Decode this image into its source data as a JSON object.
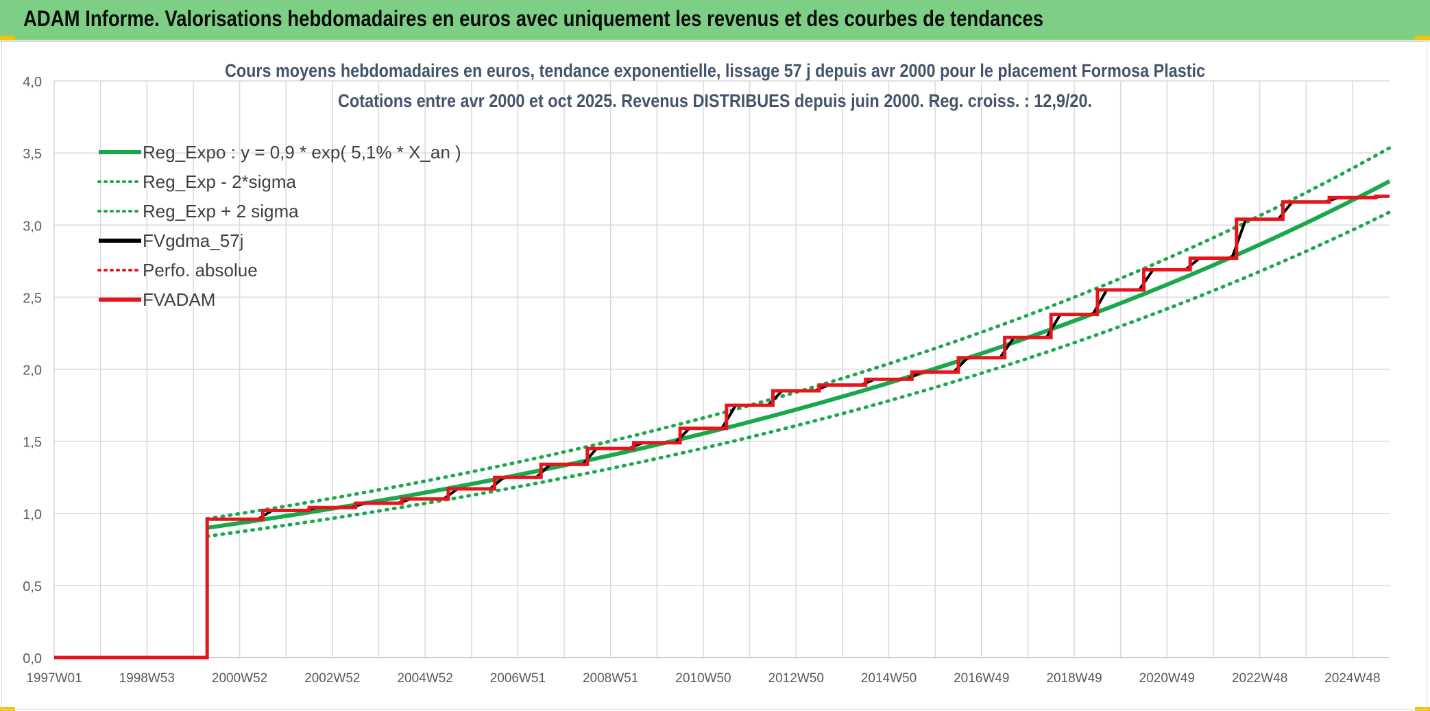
{
  "banner": {
    "title": "ADAM Informe. Valorisations hebdomadaires en euros avec uniquement les revenus et des courbes de tendances"
  },
  "colors": {
    "banner_bg": "#7ccf84",
    "trend_green": "#1aa84c",
    "adam_red": "#e8141c",
    "gdma_black": "#000000",
    "grid": "#d9d9d9",
    "accent_yellow": "#f2c200"
  },
  "chart_data": {
    "type": "line",
    "title": "Cours moyens hebdomadaires en euros, tendance exponentielle, lissage 57 j depuis avr 2000 pour le placement Formosa Plastic",
    "subtitle": "Cotations entre avr 2000 et oct 2025. Revenus DISTRIBUES depuis juin 2000. Reg. croiss. : 12,9/20.",
    "xlabel": "",
    "ylabel": "",
    "x_range": [
      1997.0,
      2025.8
    ],
    "ylim": [
      0,
      4
    ],
    "y_ticks": [
      "0,0",
      "0,5",
      "1,0",
      "1,5",
      "2,0",
      "2,5",
      "3,0",
      "3,5",
      "4,0"
    ],
    "y_tick_values": [
      0,
      0.5,
      1,
      1.5,
      2,
      2.5,
      3,
      3.5,
      4
    ],
    "x_tick_labels": [
      "1997W01",
      "1998W53",
      "2000W52",
      "2002W52",
      "2004W52",
      "2006W51",
      "2008W51",
      "2010W50",
      "2012W50",
      "2014W50",
      "2016W49",
      "2018W49",
      "2020W49",
      "2022W48",
      "2024W48"
    ],
    "x_tick_values": [
      1997.0,
      1999.0,
      2001.0,
      2003.0,
      2005.0,
      2007.0,
      2009.0,
      2011.0,
      2013.0,
      2015.0,
      2017.0,
      2019.0,
      2021.0,
      2023.0,
      2025.0
    ],
    "grid": true,
    "legend_position": "top-left",
    "legend": [
      {
        "label": "Reg_Expo : y = 0,9 * exp( 5,1% *  X_an )",
        "color": "#1aa84c",
        "style": "solid"
      },
      {
        "label": "Reg_Exp - 2*sigma",
        "color": "#1aa84c",
        "style": "dotted"
      },
      {
        "label": "Reg_Exp + 2 sigma",
        "color": "#1aa84c",
        "style": "dotted"
      },
      {
        "label": "FVgdma_57j",
        "color": "#000000",
        "style": "solid"
      },
      {
        "label": "Perfo. absolue",
        "color": "#e8141c",
        "style": "dotted"
      },
      {
        "label": "FVADAM",
        "color": "#e8141c",
        "style": "solid"
      }
    ],
    "regression": {
      "a": 0.9,
      "b": 0.051,
      "x0": 2000.3,
      "x_end": 2025.8
    },
    "bands": {
      "lower_factor": 0.935,
      "upper_factor": 1.07
    },
    "fvadam_steps": [
      {
        "x": 1997.0,
        "y": 0.0
      },
      {
        "x": 2000.3,
        "y": 0.96
      },
      {
        "x": 2001.5,
        "y": 1.02
      },
      {
        "x": 2002.5,
        "y": 1.04
      },
      {
        "x": 2003.5,
        "y": 1.07
      },
      {
        "x": 2004.5,
        "y": 1.1
      },
      {
        "x": 2005.5,
        "y": 1.17
      },
      {
        "x": 2006.5,
        "y": 1.25
      },
      {
        "x": 2007.5,
        "y": 1.34
      },
      {
        "x": 2008.5,
        "y": 1.45
      },
      {
        "x": 2009.5,
        "y": 1.49
      },
      {
        "x": 2010.5,
        "y": 1.59
      },
      {
        "x": 2011.5,
        "y": 1.75
      },
      {
        "x": 2012.5,
        "y": 1.85
      },
      {
        "x": 2013.5,
        "y": 1.89
      },
      {
        "x": 2014.5,
        "y": 1.93
      },
      {
        "x": 2015.5,
        "y": 1.98
      },
      {
        "x": 2016.5,
        "y": 2.08
      },
      {
        "x": 2017.5,
        "y": 2.22
      },
      {
        "x": 2018.5,
        "y": 2.38
      },
      {
        "x": 2019.5,
        "y": 2.55
      },
      {
        "x": 2020.5,
        "y": 2.69
      },
      {
        "x": 2021.5,
        "y": 2.77
      },
      {
        "x": 2022.5,
        "y": 3.04
      },
      {
        "x": 2023.5,
        "y": 3.16
      },
      {
        "x": 2024.5,
        "y": 3.19
      },
      {
        "x": 2025.5,
        "y": 3.2
      }
    ],
    "x_end": 2025.8
  }
}
